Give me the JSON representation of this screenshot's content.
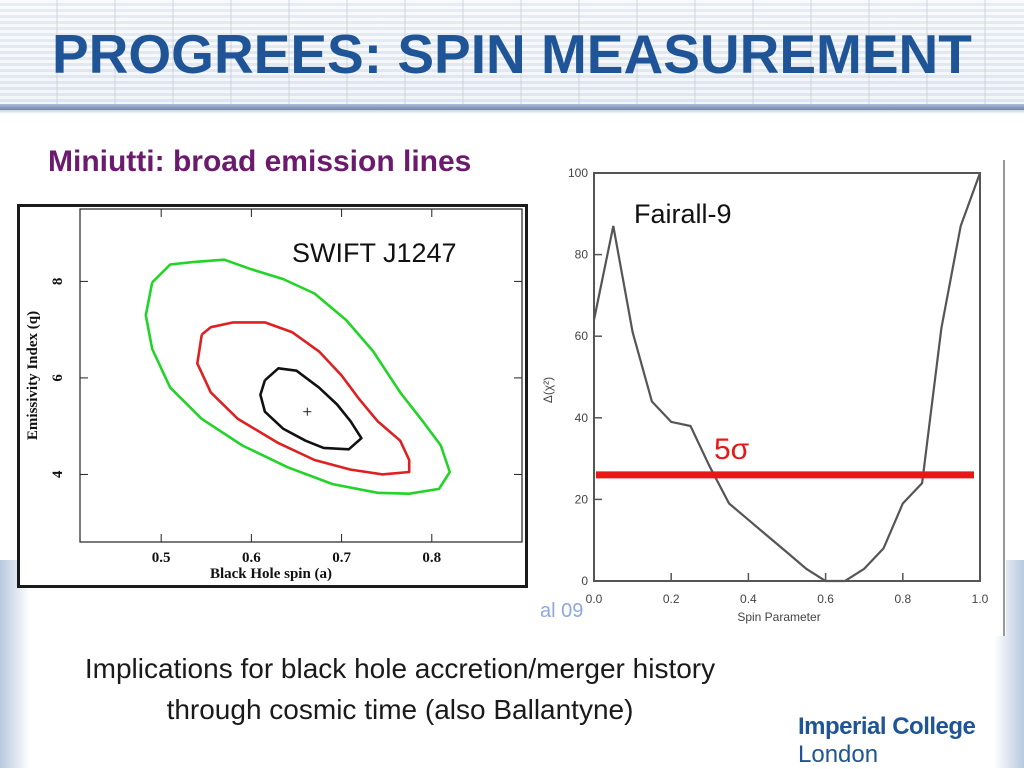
{
  "slide": {
    "title": "PROGREES: SPIN MEASUREMENT",
    "subtitle": "Miniutti: broad emission lines",
    "caption": "Implications for black hole accretion/merger history through cosmic time (also Ballantyne)",
    "citation": "al 09",
    "logo_line1": "Imperial College",
    "logo_line2": "London",
    "title_color": "#1f5596",
    "subtitle_color": "#6b1a6e"
  },
  "chart_data": [
    {
      "type": "contour",
      "annotation": "SWIFT J1247",
      "xlabel": "Black Hole spin (a)",
      "ylabel": "Emissivity Index (q)",
      "xlim": [
        0.41,
        0.9
      ],
      "ylim": [
        2.6,
        9.5
      ],
      "x_ticks": [
        "0.5",
        "0.6",
        "0.7",
        "0.8"
      ],
      "y_ticks": [
        "4",
        "6",
        "8"
      ],
      "best_fit": {
        "x": 0.662,
        "y": 5.3
      },
      "contours": [
        {
          "color": "#22d428",
          "points": [
            [
              0.49,
              7.98
            ],
            [
              0.51,
              8.35
            ],
            [
              0.535,
              8.4
            ],
            [
              0.57,
              8.45
            ],
            [
              0.6,
              8.25
            ],
            [
              0.635,
              8.05
            ],
            [
              0.67,
              7.75
            ],
            [
              0.705,
              7.2
            ],
            [
              0.735,
              6.55
            ],
            [
              0.765,
              5.7
            ],
            [
              0.79,
              5.1
            ],
            [
              0.81,
              4.6
            ],
            [
              0.82,
              4.05
            ],
            [
              0.808,
              3.7
            ],
            [
              0.775,
              3.6
            ],
            [
              0.74,
              3.62
            ],
            [
              0.69,
              3.8
            ],
            [
              0.64,
              4.15
            ],
            [
              0.59,
              4.6
            ],
            [
              0.545,
              5.15
            ],
            [
              0.51,
              5.8
            ],
            [
              0.49,
              6.6
            ],
            [
              0.483,
              7.3
            ],
            [
              0.49,
              7.98
            ]
          ]
        },
        {
          "color": "#e02020",
          "points": [
            [
              0.545,
              6.9
            ],
            [
              0.555,
              7.05
            ],
            [
              0.58,
              7.15
            ],
            [
              0.615,
              7.15
            ],
            [
              0.645,
              6.95
            ],
            [
              0.675,
              6.55
            ],
            [
              0.7,
              6.05
            ],
            [
              0.72,
              5.55
            ],
            [
              0.74,
              5.1
            ],
            [
              0.765,
              4.7
            ],
            [
              0.775,
              4.3
            ],
            [
              0.775,
              4.05
            ],
            [
              0.745,
              4.0
            ],
            [
              0.71,
              4.1
            ],
            [
              0.67,
              4.3
            ],
            [
              0.63,
              4.65
            ],
            [
              0.585,
              5.15
            ],
            [
              0.555,
              5.7
            ],
            [
              0.54,
              6.3
            ],
            [
              0.545,
              6.9
            ]
          ]
        },
        {
          "color": "#111111",
          "points": [
            [
              0.615,
              5.95
            ],
            [
              0.63,
              6.2
            ],
            [
              0.65,
              6.15
            ],
            [
              0.675,
              5.8
            ],
            [
              0.695,
              5.45
            ],
            [
              0.71,
              5.1
            ],
            [
              0.722,
              4.75
            ],
            [
              0.708,
              4.52
            ],
            [
              0.68,
              4.55
            ],
            [
              0.66,
              4.7
            ],
            [
              0.635,
              4.95
            ],
            [
              0.615,
              5.3
            ],
            [
              0.61,
              5.65
            ],
            [
              0.615,
              5.95
            ]
          ]
        }
      ]
    },
    {
      "type": "line",
      "annotation": "Fairall-9",
      "xlabel": "Spin Parameter",
      "ylabel": "Δ(χ²)",
      "xlim": [
        0,
        1
      ],
      "ylim": [
        0,
        100
      ],
      "x_ticks": [
        "0.0",
        "0.2",
        "0.4",
        "0.6",
        "0.8",
        "1.0"
      ],
      "y_ticks": [
        "0",
        "20",
        "40",
        "60",
        "80",
        "100"
      ],
      "threshold": {
        "value": 26,
        "label": "5σ",
        "color": "#e81818"
      },
      "series": [
        {
          "x": [
            0.0,
            0.05,
            0.1,
            0.15,
            0.2,
            0.25,
            0.3,
            0.35,
            0.4,
            0.45,
            0.5,
            0.55,
            0.6,
            0.65,
            0.7,
            0.75,
            0.8,
            0.85,
            0.9,
            0.95,
            1.0
          ],
          "y": [
            64,
            87,
            61,
            44,
            39,
            38,
            28,
            19,
            15,
            11,
            7,
            3,
            0,
            0,
            3,
            8,
            19,
            24,
            62,
            87,
            100
          ]
        }
      ]
    }
  ]
}
